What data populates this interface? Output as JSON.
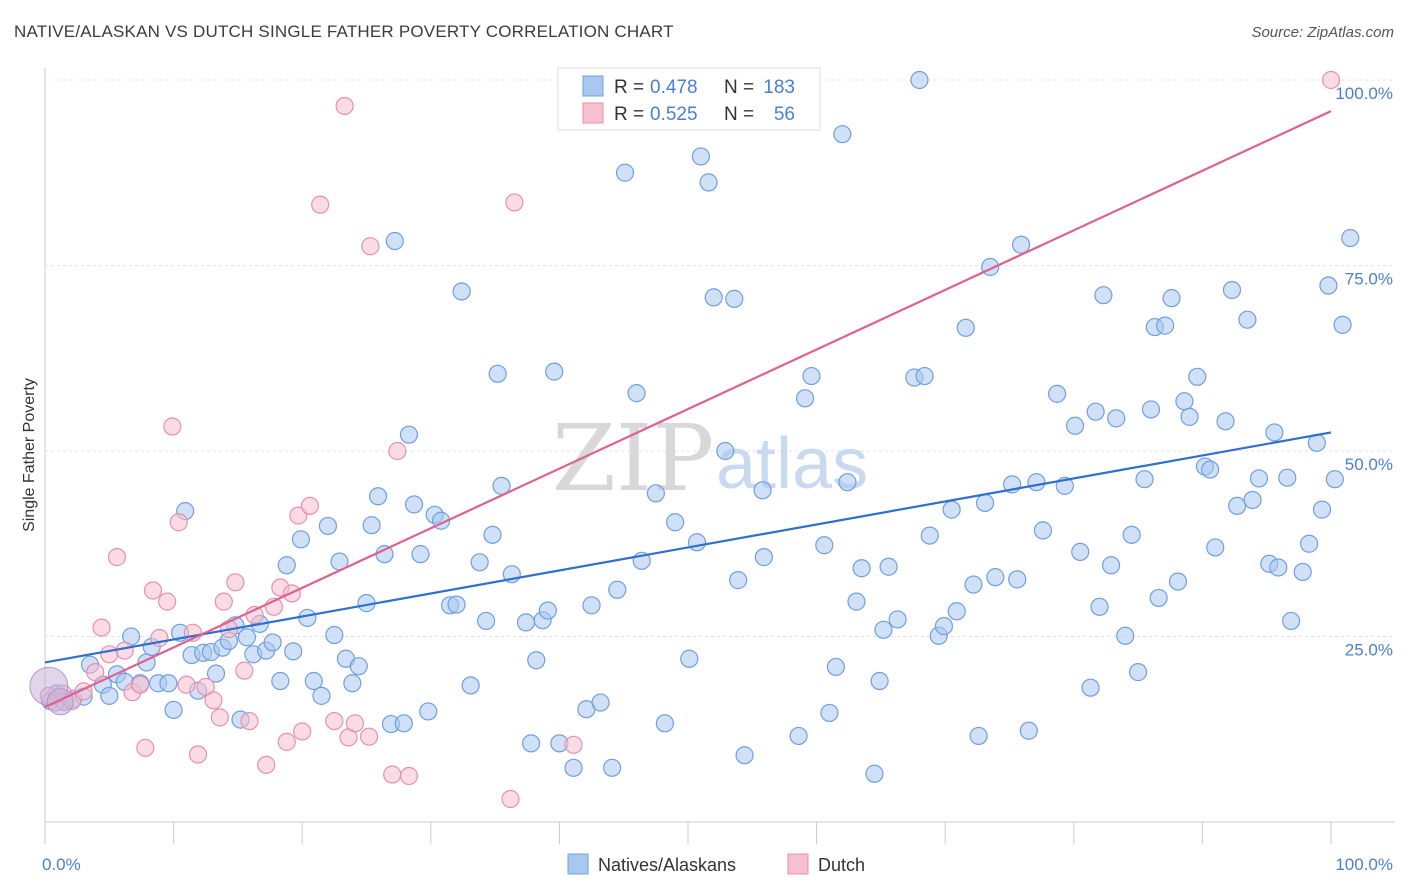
{
  "title": "NATIVE/ALASKAN VS DUTCH SINGLE FATHER POVERTY CORRELATION CHART",
  "source": "Source: ZipAtlas.com",
  "watermark": {
    "zip": "ZIP",
    "atlas": "atlas"
  },
  "legend": {
    "rows": [
      {
        "r_label": "R =",
        "r_value": "0.478",
        "n_label": "N =",
        "n_value": "183",
        "color": "#a9c8f0",
        "stroke": "#6f9fe0"
      },
      {
        "r_label": "R =",
        "r_value": "0.525",
        "n_label": "N =",
        "n_value": "56",
        "color": "#f7bfd0",
        "stroke": "#e890ad"
      }
    ]
  },
  "bottom_legend": [
    {
      "label": "Natives/Alaskans",
      "color": "#a9c8f0",
      "stroke": "#6f9fe0"
    },
    {
      "label": "Dutch",
      "color": "#f7bfd0",
      "stroke": "#e890ad"
    }
  ],
  "chart_data": {
    "type": "scatter",
    "xlabel": "",
    "ylabel": "Single Father Poverty",
    "xlim": [
      0,
      100
    ],
    "ylim": [
      0,
      100
    ],
    "x_tick_labels": [
      "0.0%",
      "100.0%"
    ],
    "y_tick_labels": [
      "25.0%",
      "50.0%",
      "75.0%",
      "100.0%"
    ],
    "y_ticks": [
      25,
      50,
      75,
      100
    ],
    "x_ticks": [
      0,
      10,
      20,
      30,
      40,
      50,
      60,
      70,
      80,
      90,
      100
    ],
    "grid": true,
    "series": [
      {
        "name": "Natives/Alaskans",
        "color": "#a9c8f0",
        "stroke": "#6f9fe0",
        "line_color": "#2e6fd0",
        "trend": {
          "x": [
            0,
            100
          ],
          "y": [
            21.5,
            52.5
          ]
        },
        "points": [
          [
            0.4,
            16.3
          ],
          [
            0.9,
            17.3
          ],
          [
            1.5,
            16.2
          ],
          [
            2.2,
            16.6
          ],
          [
            3.0,
            16.9
          ],
          [
            3.5,
            21.2
          ],
          [
            4.5,
            18.5
          ],
          [
            5,
            17
          ],
          [
            5.6,
            19.9
          ],
          [
            6.2,
            18.9
          ],
          [
            6.7,
            25.0
          ],
          [
            7.4,
            18.7
          ],
          [
            7.9,
            21.5
          ],
          [
            8.3,
            23.6
          ],
          [
            8.8,
            18.7
          ],
          [
            9.6,
            18.7
          ],
          [
            10,
            15.1
          ],
          [
            10.5,
            25.5
          ],
          [
            10.9,
            41.9
          ],
          [
            11.4,
            22.5
          ],
          [
            11.9,
            17.7
          ],
          [
            12.3,
            22.8
          ],
          [
            12.9,
            22.9
          ],
          [
            13.3,
            20.0
          ],
          [
            13.8,
            23.5
          ],
          [
            14.3,
            24.4
          ],
          [
            14.8,
            26.5
          ],
          [
            15.2,
            13.8
          ],
          [
            15.7,
            24.9
          ],
          [
            16.2,
            22.6
          ],
          [
            16.7,
            26.7
          ],
          [
            17.2,
            23.1
          ],
          [
            17.7,
            24.2
          ],
          [
            18.3,
            19.0
          ],
          [
            18.8,
            34.6
          ],
          [
            19.3,
            23.0
          ],
          [
            19.9,
            38.1
          ],
          [
            20.4,
            27.5
          ],
          [
            20.9,
            19.0
          ],
          [
            21.5,
            17.0
          ],
          [
            22.0,
            39.9
          ],
          [
            22.5,
            25.2
          ],
          [
            22.9,
            35.1
          ],
          [
            23.4,
            22.0
          ],
          [
            23.9,
            18.7
          ],
          [
            24.4,
            21.0
          ],
          [
            25.0,
            29.5
          ],
          [
            25.4,
            40.0
          ],
          [
            25.9,
            43.9
          ],
          [
            26.4,
            36.1
          ],
          [
            26.9,
            13.2
          ],
          [
            27.2,
            78.3
          ],
          [
            27.9,
            13.3
          ],
          [
            28.3,
            52.2
          ],
          [
            28.7,
            42.8
          ],
          [
            29.2,
            36.1
          ],
          [
            29.8,
            14.9
          ],
          [
            30.3,
            41.4
          ],
          [
            30.8,
            40.6
          ],
          [
            31.5,
            29.2
          ],
          [
            32.0,
            29.3
          ],
          [
            32.4,
            71.5
          ],
          [
            33.1,
            18.4
          ],
          [
            33.8,
            35.0
          ],
          [
            34.3,
            27.1
          ],
          [
            34.8,
            38.7
          ],
          [
            35.2,
            60.4
          ],
          [
            35.5,
            45.3
          ],
          [
            36.3,
            33.4
          ],
          [
            37.4,
            26.9
          ],
          [
            37.8,
            10.6
          ],
          [
            38.2,
            21.8
          ],
          [
            38.7,
            27.2
          ],
          [
            39.1,
            28.5
          ],
          [
            39.6,
            60.7
          ],
          [
            40,
            10.6
          ],
          [
            41.1,
            7.3
          ],
          [
            42.1,
            15.2
          ],
          [
            42.5,
            29.2
          ],
          [
            43.2,
            16.1
          ],
          [
            44.1,
            7.3
          ],
          [
            44.5,
            31.3
          ],
          [
            45.1,
            87.5
          ],
          [
            46,
            57.8
          ],
          [
            46.4,
            35.2
          ],
          [
            47.5,
            44.3
          ],
          [
            48.2,
            13.3
          ],
          [
            49.0,
            40.4
          ],
          [
            50.1,
            22.0
          ],
          [
            50.7,
            37.7
          ],
          [
            51.0,
            89.7
          ],
          [
            51.6,
            86.2
          ],
          [
            52.0,
            70.7
          ],
          [
            52.9,
            50.0
          ],
          [
            53.6,
            70.5
          ],
          [
            53.9,
            32.6
          ],
          [
            54.4,
            9.0
          ],
          [
            55.8,
            44.7
          ],
          [
            55.9,
            35.7
          ],
          [
            58.6,
            11.6
          ],
          [
            59.1,
            57.1
          ],
          [
            59.6,
            60.1
          ],
          [
            60.6,
            37.3
          ],
          [
            61.0,
            14.7
          ],
          [
            61.5,
            20.9
          ],
          [
            62.0,
            92.7
          ],
          [
            62.4,
            45.8
          ],
          [
            63.1,
            29.7
          ],
          [
            63.5,
            34.2
          ],
          [
            64.5,
            6.5
          ],
          [
            64.9,
            19.0
          ],
          [
            65.2,
            25.9
          ],
          [
            65.6,
            34.4
          ],
          [
            66.3,
            27.3
          ],
          [
            67.6,
            59.9
          ],
          [
            68.0,
            100
          ],
          [
            68.4,
            60.1
          ],
          [
            68.8,
            38.6
          ],
          [
            69.5,
            25.1
          ],
          [
            69.9,
            26.4
          ],
          [
            70.5,
            42.1
          ],
          [
            70.9,
            28.4
          ],
          [
            71.6,
            66.6
          ],
          [
            72.2,
            32.0
          ],
          [
            72.6,
            11.6
          ],
          [
            73.1,
            43.0
          ],
          [
            73.5,
            74.8
          ],
          [
            73.9,
            33.0
          ],
          [
            75.2,
            45.5
          ],
          [
            75.6,
            32.7
          ],
          [
            75.9,
            77.8
          ],
          [
            76.5,
            12.3
          ],
          [
            77.1,
            45.8
          ],
          [
            77.6,
            39.3
          ],
          [
            78.7,
            57.7
          ],
          [
            79.3,
            45.3
          ],
          [
            80.1,
            53.4
          ],
          [
            80.5,
            36.4
          ],
          [
            81.3,
            18.1
          ],
          [
            81.7,
            55.3
          ],
          [
            82.0,
            29.0
          ],
          [
            82.3,
            71.0
          ],
          [
            82.9,
            34.6
          ],
          [
            83.3,
            54.4
          ],
          [
            84.0,
            25.1
          ],
          [
            84.5,
            38.7
          ],
          [
            85.0,
            20.2
          ],
          [
            85.5,
            46.2
          ],
          [
            86.0,
            55.6
          ],
          [
            86.3,
            66.7
          ],
          [
            86.6,
            30.2
          ],
          [
            87.1,
            66.9
          ],
          [
            87.6,
            70.6
          ],
          [
            88.1,
            32.4
          ],
          [
            88.6,
            56.7
          ],
          [
            89.0,
            54.6
          ],
          [
            89.6,
            60.0
          ],
          [
            90.2,
            47.9
          ],
          [
            90.6,
            47.5
          ],
          [
            91.0,
            37.0
          ],
          [
            91.8,
            54.0
          ],
          [
            92.3,
            71.7
          ],
          [
            92.7,
            42.6
          ],
          [
            93.5,
            67.7
          ],
          [
            93.9,
            43.4
          ],
          [
            94.4,
            46.3
          ],
          [
            95.2,
            34.8
          ],
          [
            95.6,
            52.5
          ],
          [
            95.9,
            34.3
          ],
          [
            96.6,
            46.4
          ],
          [
            96.9,
            27.1
          ],
          [
            97.8,
            33.7
          ],
          [
            98.3,
            37.5
          ],
          [
            98.9,
            51.1
          ],
          [
            99.3,
            42.1
          ],
          [
            99.8,
            72.3
          ],
          [
            100.3,
            46.2
          ],
          [
            100.9,
            67.0
          ],
          [
            101.5,
            78.7
          ]
        ]
      },
      {
        "name": "Dutch",
        "color": "#f7bfd0",
        "stroke": "#e890ad",
        "line_color": "#e06090",
        "trend": {
          "x": [
            0,
            100
          ],
          "y": [
            15.5,
            95.8
          ]
        },
        "points": [
          [
            0.3,
            17.0
          ],
          [
            0.8,
            16.1
          ],
          [
            1.4,
            17.3
          ],
          [
            2.1,
            16.3
          ],
          [
            3.0,
            17.6
          ],
          [
            3.9,
            20.2
          ],
          [
            4.4,
            26.2
          ],
          [
            5.0,
            22.6
          ],
          [
            5.6,
            35.7
          ],
          [
            6.2,
            23.1
          ],
          [
            6.8,
            17.5
          ],
          [
            7.4,
            18.5
          ],
          [
            7.8,
            10.0
          ],
          [
            8.4,
            31.2
          ],
          [
            8.9,
            24.8
          ],
          [
            9.5,
            29.7
          ],
          [
            9.9,
            53.3
          ],
          [
            10.4,
            40.4
          ],
          [
            11.0,
            18.5
          ],
          [
            11.5,
            25.5
          ],
          [
            11.9,
            9.1
          ],
          [
            12.5,
            18.2
          ],
          [
            13.1,
            16.4
          ],
          [
            13.6,
            14.1
          ],
          [
            13.9,
            29.7
          ],
          [
            14.3,
            26.0
          ],
          [
            14.8,
            32.3
          ],
          [
            15.5,
            20.4
          ],
          [
            15.9,
            13.6
          ],
          [
            16.3,
            27.9
          ],
          [
            17.2,
            7.7
          ],
          [
            17.8,
            29.0
          ],
          [
            18.3,
            31.6
          ],
          [
            18.8,
            10.8
          ],
          [
            19.2,
            30.8
          ],
          [
            19.7,
            41.3
          ],
          [
            20.0,
            12.2
          ],
          [
            20.6,
            42.6
          ],
          [
            21.4,
            83.2
          ],
          [
            22.5,
            13.6
          ],
          [
            23.3,
            96.5
          ],
          [
            23.6,
            11.4
          ],
          [
            24.1,
            13.3
          ],
          [
            25.2,
            11.5
          ],
          [
            25.3,
            77.6
          ],
          [
            27.0,
            6.4
          ],
          [
            27.4,
            50.0
          ],
          [
            28.3,
            6.2
          ],
          [
            36.2,
            3.1
          ],
          [
            36.5,
            83.5
          ],
          [
            41.1,
            10.4
          ],
          [
            100,
            100
          ]
        ]
      }
    ]
  }
}
